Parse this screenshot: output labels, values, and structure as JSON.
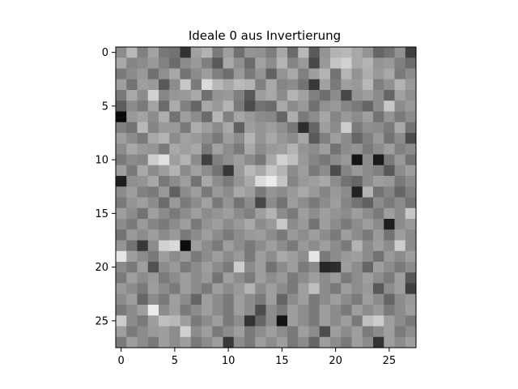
{
  "chart_data": {
    "type": "heatmap",
    "title": "Ideale 0 aus Invertierung",
    "xlabel": "",
    "ylabel": "",
    "colormap": "gray",
    "rows": 28,
    "cols": 28,
    "x_ticks": [
      0,
      5,
      10,
      15,
      20,
      25
    ],
    "y_ticks": [
      0,
      5,
      10,
      15,
      20,
      25
    ],
    "xlim": [
      -0.5,
      27.5
    ],
    "ylim": [
      27.5,
      -0.5
    ],
    "grid": false,
    "values": [
      [
        0.55,
        0.72,
        0.5,
        0.64,
        0.47,
        0.45,
        0.2,
        0.63,
        0.7,
        0.48,
        0.62,
        0.44,
        0.58,
        0.57,
        0.49,
        0.66,
        0.42,
        0.72,
        0.35,
        0.58,
        0.7,
        0.72,
        0.66,
        0.58,
        0.4,
        0.45,
        0.57,
        0.25
      ],
      [
        0.66,
        0.52,
        0.55,
        0.6,
        0.51,
        0.42,
        0.55,
        0.6,
        0.5,
        0.35,
        0.66,
        0.56,
        0.42,
        0.63,
        0.55,
        0.7,
        0.52,
        0.6,
        0.28,
        0.6,
        0.77,
        0.82,
        0.66,
        0.7,
        0.58,
        0.6,
        0.5,
        0.42
      ],
      [
        0.48,
        0.55,
        0.6,
        0.44,
        0.56,
        0.66,
        0.45,
        0.55,
        0.62,
        0.5,
        0.43,
        0.6,
        0.48,
        0.58,
        0.39,
        0.58,
        0.66,
        0.5,
        0.62,
        0.7,
        0.45,
        0.71,
        0.58,
        0.68,
        0.6,
        0.66,
        0.48,
        0.55
      ],
      [
        0.62,
        0.45,
        0.62,
        0.6,
        0.35,
        0.55,
        0.78,
        0.48,
        0.86,
        0.72,
        0.66,
        0.73,
        0.7,
        0.5,
        0.66,
        0.52,
        0.55,
        0.45,
        0.22,
        0.63,
        0.48,
        0.62,
        0.6,
        0.72,
        0.5,
        0.57,
        0.7,
        0.6
      ],
      [
        0.48,
        0.66,
        0.55,
        0.82,
        0.53,
        0.59,
        0.6,
        0.66,
        0.44,
        0.58,
        0.6,
        0.5,
        0.35,
        0.62,
        0.66,
        0.55,
        0.7,
        0.63,
        0.5,
        0.43,
        0.55,
        0.28,
        0.58,
        0.62,
        0.55,
        0.4,
        0.63,
        0.56
      ],
      [
        0.37,
        0.55,
        0.48,
        0.64,
        0.42,
        0.67,
        0.5,
        0.4,
        0.66,
        0.6,
        0.7,
        0.48,
        0.3,
        0.45,
        0.42,
        0.66,
        0.55,
        0.6,
        0.44,
        0.57,
        0.6,
        0.52,
        0.48,
        0.4,
        0.55,
        0.78,
        0.55,
        0.6
      ],
      [
        0.04,
        0.6,
        0.64,
        0.55,
        0.68,
        0.45,
        0.62,
        0.55,
        0.42,
        0.71,
        0.5,
        0.65,
        0.6,
        0.55,
        0.53,
        0.4,
        0.68,
        0.48,
        0.55,
        0.65,
        0.52,
        0.6,
        0.55,
        0.62,
        0.45,
        0.58,
        0.48,
        0.55
      ],
      [
        0.5,
        0.45,
        0.72,
        0.52,
        0.6,
        0.6,
        0.48,
        0.68,
        0.62,
        0.55,
        0.66,
        0.38,
        0.62,
        0.58,
        0.62,
        0.56,
        0.47,
        0.18,
        0.4,
        0.62,
        0.55,
        0.8,
        0.48,
        0.56,
        0.55,
        0.48,
        0.66,
        0.45
      ],
      [
        0.62,
        0.55,
        0.48,
        0.66,
        0.7,
        0.55,
        0.63,
        0.6,
        0.55,
        0.48,
        0.62,
        0.55,
        0.7,
        0.58,
        0.66,
        0.59,
        0.55,
        0.65,
        0.35,
        0.5,
        0.62,
        0.55,
        0.4,
        0.5,
        0.6,
        0.45,
        0.55,
        0.3
      ],
      [
        0.55,
        0.66,
        0.6,
        0.58,
        0.48,
        0.66,
        0.62,
        0.66,
        0.48,
        0.63,
        0.55,
        0.48,
        0.66,
        0.55,
        0.6,
        0.62,
        0.7,
        0.58,
        0.55,
        0.62,
        0.45,
        0.55,
        0.58,
        0.48,
        0.55,
        0.62,
        0.5,
        0.55
      ],
      [
        0.48,
        0.55,
        0.52,
        0.8,
        0.88,
        0.62,
        0.7,
        0.55,
        0.25,
        0.5,
        0.56,
        0.62,
        0.55,
        0.47,
        0.66,
        0.82,
        0.75,
        0.6,
        0.52,
        0.47,
        0.55,
        0.6,
        0.08,
        0.55,
        0.1,
        0.48,
        0.6,
        0.45
      ],
      [
        0.62,
        0.48,
        0.66,
        0.55,
        0.62,
        0.7,
        0.55,
        0.63,
        0.55,
        0.45,
        0.22,
        0.6,
        0.72,
        0.66,
        0.78,
        0.7,
        0.55,
        0.62,
        0.48,
        0.55,
        0.3,
        0.52,
        0.6,
        0.55,
        0.5,
        0.35,
        0.55,
        0.62
      ],
      [
        0.12,
        0.56,
        0.58,
        0.66,
        0.47,
        0.55,
        0.62,
        0.45,
        0.66,
        0.55,
        0.48,
        0.58,
        0.66,
        0.86,
        0.92,
        0.77,
        0.52,
        0.6,
        0.62,
        0.66,
        0.55,
        0.45,
        0.4,
        0.55,
        0.62,
        0.6,
        0.48,
        0.55
      ],
      [
        0.55,
        0.62,
        0.5,
        0.48,
        0.6,
        0.38,
        0.55,
        0.62,
        0.48,
        0.6,
        0.55,
        0.66,
        0.62,
        0.48,
        0.58,
        0.55,
        0.6,
        0.66,
        0.6,
        0.52,
        0.6,
        0.55,
        0.13,
        0.7,
        0.45,
        0.52,
        0.4,
        0.5
      ],
      [
        0.48,
        0.58,
        0.62,
        0.55,
        0.42,
        0.6,
        0.48,
        0.55,
        0.63,
        0.48,
        0.58,
        0.45,
        0.55,
        0.28,
        0.55,
        0.45,
        0.62,
        0.55,
        0.48,
        0.55,
        0.62,
        0.52,
        0.45,
        0.38,
        0.55,
        0.48,
        0.55,
        0.45
      ],
      [
        0.62,
        0.55,
        0.45,
        0.62,
        0.55,
        0.48,
        0.55,
        0.62,
        0.55,
        0.58,
        0.62,
        0.55,
        0.5,
        0.62,
        0.7,
        0.55,
        0.48,
        0.62,
        0.55,
        0.62,
        0.58,
        0.55,
        0.62,
        0.55,
        0.48,
        0.62,
        0.55,
        0.78
      ],
      [
        0.55,
        0.48,
        0.6,
        0.52,
        0.48,
        0.55,
        0.62,
        0.48,
        0.58,
        0.62,
        0.55,
        0.6,
        0.66,
        0.55,
        0.6,
        0.78,
        0.55,
        0.6,
        0.45,
        0.62,
        0.55,
        0.48,
        0.55,
        0.62,
        0.55,
        0.12,
        0.55,
        0.6
      ],
      [
        0.45,
        0.6,
        0.55,
        0.62,
        0.55,
        0.6,
        0.48,
        0.55,
        0.62,
        0.55,
        0.48,
        0.55,
        0.6,
        0.62,
        0.55,
        0.48,
        0.6,
        0.55,
        0.62,
        0.55,
        0.48,
        0.62,
        0.55,
        0.48,
        0.6,
        0.45,
        0.62,
        0.55
      ],
      [
        0.58,
        0.45,
        0.22,
        0.55,
        0.82,
        0.85,
        0.05,
        0.62,
        0.55,
        0.48,
        0.62,
        0.55,
        0.48,
        0.55,
        0.62,
        0.55,
        0.48,
        0.6,
        0.55,
        0.62,
        0.55,
        0.48,
        0.7,
        0.55,
        0.62,
        0.55,
        0.8,
        0.55
      ],
      [
        0.9,
        0.62,
        0.55,
        0.48,
        0.62,
        0.55,
        0.6,
        0.48,
        0.55,
        0.62,
        0.55,
        0.6,
        0.48,
        0.62,
        0.55,
        0.66,
        0.62,
        0.55,
        0.9,
        0.48,
        0.55,
        0.6,
        0.62,
        0.55,
        0.45,
        0.6,
        0.55,
        0.62
      ],
      [
        0.55,
        0.48,
        0.62,
        0.32,
        0.55,
        0.6,
        0.48,
        0.55,
        0.62,
        0.55,
        0.48,
        0.8,
        0.55,
        0.62,
        0.45,
        0.55,
        0.62,
        0.48,
        0.55,
        0.15,
        0.18,
        0.62,
        0.55,
        0.4,
        0.62,
        0.55,
        0.48,
        0.55
      ],
      [
        0.48,
        0.62,
        0.55,
        0.6,
        0.48,
        0.55,
        0.62,
        0.55,
        0.6,
        0.45,
        0.62,
        0.55,
        0.48,
        0.62,
        0.55,
        0.6,
        0.48,
        0.55,
        0.62,
        0.55,
        0.6,
        0.48,
        0.55,
        0.62,
        0.55,
        0.48,
        0.62,
        0.35
      ],
      [
        0.6,
        0.55,
        0.48,
        0.62,
        0.55,
        0.48,
        0.62,
        0.55,
        0.48,
        0.62,
        0.55,
        0.6,
        0.7,
        0.55,
        0.62,
        0.55,
        0.48,
        0.62,
        0.75,
        0.55,
        0.48,
        0.62,
        0.55,
        0.6,
        0.35,
        0.55,
        0.62,
        0.25
      ],
      [
        0.55,
        0.62,
        0.4,
        0.55,
        0.48,
        0.62,
        0.55,
        0.4,
        0.62,
        0.55,
        0.48,
        0.62,
        0.55,
        0.48,
        0.62,
        0.4,
        0.55,
        0.62,
        0.48,
        0.55,
        0.62,
        0.55,
        0.48,
        0.62,
        0.55,
        0.4,
        0.55,
        0.6
      ],
      [
        0.48,
        0.55,
        0.62,
        0.92,
        0.55,
        0.62,
        0.48,
        0.55,
        0.62,
        0.55,
        0.48,
        0.62,
        0.55,
        0.3,
        0.55,
        0.48,
        0.62,
        0.55,
        0.48,
        0.62,
        0.55,
        0.48,
        0.62,
        0.55,
        0.6,
        0.48,
        0.55,
        0.62
      ],
      [
        0.8,
        0.55,
        0.48,
        0.62,
        0.75,
        0.72,
        0.62,
        0.48,
        0.55,
        0.62,
        0.48,
        0.55,
        0.2,
        0.4,
        0.55,
        0.08,
        0.62,
        0.55,
        0.48,
        0.62,
        0.55,
        0.62,
        0.48,
        0.75,
        0.8,
        0.62,
        0.55,
        0.48
      ],
      [
        0.62,
        0.48,
        0.55,
        0.6,
        0.62,
        0.55,
        0.82,
        0.55,
        0.62,
        0.48,
        0.55,
        0.62,
        0.48,
        0.55,
        0.62,
        0.55,
        0.48,
        0.62,
        0.55,
        0.3,
        0.62,
        0.55,
        0.62,
        0.48,
        0.55,
        0.62,
        0.48,
        0.55
      ],
      [
        0.48,
        0.62,
        0.55,
        0.48,
        0.62,
        0.55,
        0.62,
        0.48,
        0.55,
        0.62,
        0.22,
        0.55,
        0.48,
        0.62,
        0.55,
        0.62,
        0.48,
        0.55,
        0.4,
        0.62,
        0.55,
        0.48,
        0.62,
        0.55,
        0.2,
        0.62,
        0.55,
        0.62
      ]
    ]
  }
}
